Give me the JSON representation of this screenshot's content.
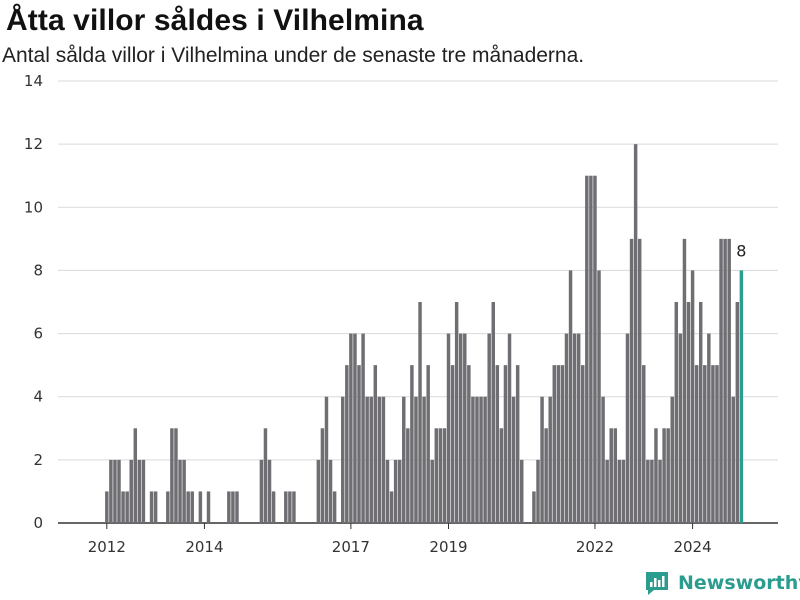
{
  "title": "Åtta villor såldes i Vilhelmina",
  "subtitle": "Antal sålda villor i Vilhelmina under de senaste tre månaderna.",
  "brand": "Newsworthy",
  "colors": {
    "bar": "#6e6e73",
    "highlight": "#2a9d8f",
    "grid": "#d9d9d9",
    "axis": "#333333"
  },
  "chart_data": {
    "type": "bar",
    "title": "Åtta villor såldes i Vilhelmina",
    "subtitle": "Antal sålda villor i Vilhelmina under de senaste tre månaderna.",
    "ylim": [
      0,
      14
    ],
    "yticks": [
      0,
      2,
      4,
      6,
      8,
      10,
      12,
      14
    ],
    "xticks": [
      "2012",
      "2014",
      "2017",
      "2019",
      "2022",
      "2024"
    ],
    "xlim": [
      "2011-01",
      "2025-10"
    ],
    "grid": true,
    "last_value_label": "8",
    "x": [
      "2012-01",
      "2012-02",
      "2012-03",
      "2012-04",
      "2012-05",
      "2012-06",
      "2012-07",
      "2012-08",
      "2012-09",
      "2012-10",
      "2012-11",
      "2012-12",
      "2013-01",
      "2013-02",
      "2013-03",
      "2013-04",
      "2013-05",
      "2013-06",
      "2013-07",
      "2013-08",
      "2013-09",
      "2013-10",
      "2013-11",
      "2013-12",
      "2014-01",
      "2014-02",
      "2014-03",
      "2014-04",
      "2014-05",
      "2014-06",
      "2014-07",
      "2014-08",
      "2014-09",
      "2014-10",
      "2014-11",
      "2014-12",
      "2015-01",
      "2015-02",
      "2015-03",
      "2015-04",
      "2015-05",
      "2015-06",
      "2015-07",
      "2015-08",
      "2015-09",
      "2015-10",
      "2015-11",
      "2015-12",
      "2016-01",
      "2016-02",
      "2016-03",
      "2016-04",
      "2016-05",
      "2016-06",
      "2016-07",
      "2016-08",
      "2016-09",
      "2016-10",
      "2016-11",
      "2016-12",
      "2017-01",
      "2017-02",
      "2017-03",
      "2017-04",
      "2017-05",
      "2017-06",
      "2017-07",
      "2017-08",
      "2017-09",
      "2017-10",
      "2017-11",
      "2017-12",
      "2018-01",
      "2018-02",
      "2018-03",
      "2018-04",
      "2018-05",
      "2018-06",
      "2018-07",
      "2018-08",
      "2018-09",
      "2018-10",
      "2018-11",
      "2018-12",
      "2019-01",
      "2019-02",
      "2019-03",
      "2019-04",
      "2019-05",
      "2019-06",
      "2019-07",
      "2019-08",
      "2019-09",
      "2019-10",
      "2019-11",
      "2019-12",
      "2020-01",
      "2020-02",
      "2020-03",
      "2020-04",
      "2020-05",
      "2020-06",
      "2020-07",
      "2020-08",
      "2020-09",
      "2020-10",
      "2020-11",
      "2020-12",
      "2021-01",
      "2021-02",
      "2021-03",
      "2021-04",
      "2021-05",
      "2021-06",
      "2021-07",
      "2021-08",
      "2021-09",
      "2021-10",
      "2021-11",
      "2021-12",
      "2022-01",
      "2022-02",
      "2022-03",
      "2022-04",
      "2022-05",
      "2022-06",
      "2022-07",
      "2022-08",
      "2022-09",
      "2022-10",
      "2022-11",
      "2022-12",
      "2023-01",
      "2023-02",
      "2023-03",
      "2023-04",
      "2023-05",
      "2023-06",
      "2023-07",
      "2023-08",
      "2023-09",
      "2023-10",
      "2023-11",
      "2023-12",
      "2024-01",
      "2024-02",
      "2024-03",
      "2024-04",
      "2024-05",
      "2024-06",
      "2024-07",
      "2024-08",
      "2024-09",
      "2024-10",
      "2024-11",
      "2024-12",
      "2025-01",
      "2025-02",
      "2025-03",
      "2025-04",
      "2025-05",
      "2025-06",
      "2025-07",
      "2025-08"
    ],
    "values": [
      1,
      2,
      2,
      2,
      1,
      1,
      2,
      3,
      2,
      2,
      0,
      1,
      1,
      0,
      0,
      1,
      3,
      3,
      2,
      2,
      1,
      1,
      0,
      1,
      0,
      1,
      0,
      0,
      0,
      0,
      1,
      1,
      1,
      0,
      0,
      0,
      0,
      0,
      2,
      3,
      2,
      1,
      0,
      0,
      1,
      1,
      1,
      0,
      0,
      0,
      0,
      0,
      2,
      3,
      4,
      2,
      1,
      0,
      4,
      5,
      6,
      6,
      5,
      6,
      4,
      4,
      5,
      4,
      4,
      2,
      1,
      2,
      2,
      4,
      3,
      5,
      4,
      7,
      4,
      5,
      2,
      3,
      3,
      3,
      6,
      5,
      7,
      6,
      6,
      5,
      4,
      4,
      4,
      4,
      6,
      7,
      5,
      3,
      5,
      6,
      4,
      5,
      2,
      0,
      0,
      1,
      2,
      4,
      3,
      4,
      5,
      5,
      5,
      6,
      8,
      6,
      6,
      5,
      11,
      11,
      11,
      8,
      4,
      2,
      3,
      3,
      2,
      2,
      6,
      9,
      12,
      9,
      5,
      2,
      2,
      3,
      2,
      3,
      3,
      4,
      7,
      6,
      9,
      7,
      8,
      5,
      7,
      5,
      6,
      5,
      5,
      9,
      9,
      9,
      4,
      7,
      8,
      0,
      0,
      0,
      0,
      0,
      0,
      0
    ],
    "highlight_index": 156
  }
}
